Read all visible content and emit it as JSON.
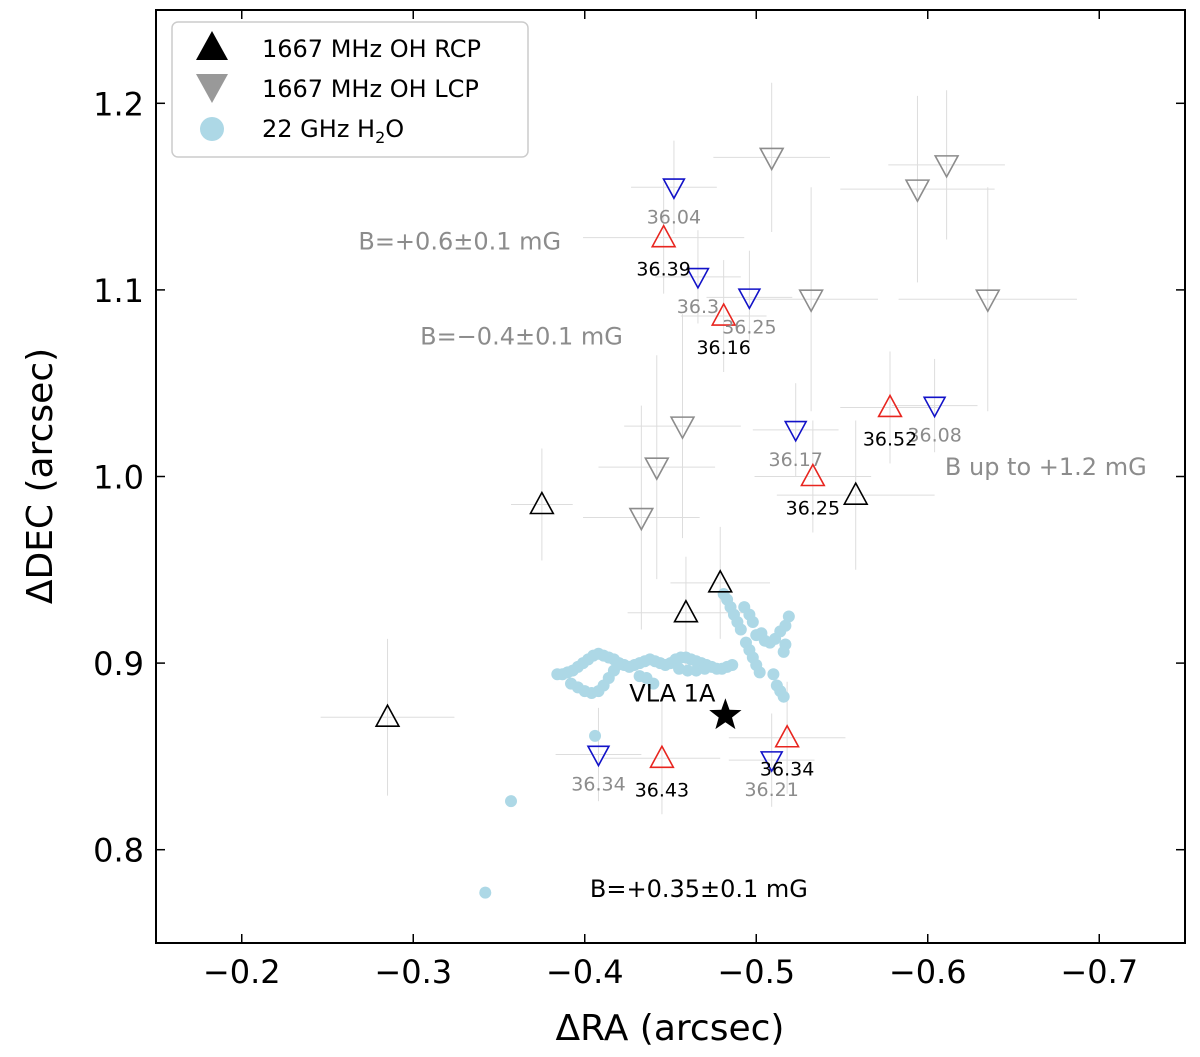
{
  "chart_data": {
    "type": "scatter",
    "xlabel": "ΔRA (arcsec)",
    "ylabel": "ΔDEC (arcsec)",
    "xlim": [
      -0.15,
      -0.75
    ],
    "ylim": [
      0.75,
      1.25
    ],
    "xticks": [
      -0.2,
      -0.3,
      -0.4,
      -0.5,
      -0.6,
      -0.7
    ],
    "xtick_labels": [
      "−0.2",
      "−0.3",
      "−0.4",
      "−0.5",
      "−0.6",
      "−0.7"
    ],
    "yticks": [
      0.8,
      0.9,
      1.0,
      1.1,
      1.2
    ],
    "ytick_labels": [
      "0.8",
      "0.9",
      "1.0",
      "1.1",
      "1.2"
    ],
    "legend": {
      "placement": "top-left",
      "entries": [
        {
          "marker": "up-triangle",
          "color": "#000000",
          "label": "1667 MHz OH RCP"
        },
        {
          "marker": "down-triangle",
          "color": "#999999",
          "label": "1667 MHz OH LCP"
        },
        {
          "marker": "circle",
          "color": "#add8e6",
          "label_main": "22 GHz H",
          "label_sub": "2",
          "label_tail": "O"
        }
      ]
    },
    "colors": {
      "black": "#000000",
      "red": "#e8251f",
      "blue": "#1212c8",
      "gray": "#8c8c8c",
      "water": "#add8e6",
      "errorbar": "#dddddd"
    },
    "rcp_black": [
      {
        "x": -0.285,
        "y": 0.871,
        "xerr": 0.039,
        "yerr": 0.042
      },
      {
        "x": -0.375,
        "y": 0.985,
        "xerr": 0.018,
        "yerr": 0.03
      },
      {
        "x": -0.459,
        "y": 0.927,
        "xerr": 0.034,
        "yerr": 0.03
      },
      {
        "x": -0.479,
        "y": 0.943,
        "xerr": 0.029,
        "yerr": 0.03
      },
      {
        "x": -0.558,
        "y": 0.99,
        "xerr": 0.046,
        "yerr": 0.04
      }
    ],
    "rcp_red": [
      {
        "x": -0.446,
        "y": 1.128,
        "xerr": 0.047,
        "yerr": 0.03,
        "label": "36.39"
      },
      {
        "x": -0.481,
        "y": 1.086,
        "xerr": 0.025,
        "yerr": 0.03,
        "label": "36.16"
      },
      {
        "x": -0.533,
        "y": 1.0,
        "xerr": 0.034,
        "yerr": 0.03,
        "label": "36.25"
      },
      {
        "x": -0.578,
        "y": 1.037,
        "xerr": 0.029,
        "yerr": 0.03,
        "label": "36.52"
      },
      {
        "x": -0.445,
        "y": 0.849,
        "xerr": 0.034,
        "yerr": 0.03,
        "label": "36.43"
      },
      {
        "x": -0.518,
        "y": 0.86,
        "xerr": 0.034,
        "yerr": 0.03,
        "label": "36.34"
      }
    ],
    "lcp_blue": [
      {
        "x": -0.452,
        "y": 1.155,
        "xerr": 0.025,
        "yerr": 0.025,
        "label": "36.04"
      },
      {
        "x": -0.466,
        "y": 1.107,
        "xerr": 0.025,
        "yerr": 0.025,
        "label": "36.3"
      },
      {
        "x": -0.496,
        "y": 1.096,
        "xerr": 0.025,
        "yerr": 0.025,
        "label": "36.25"
      },
      {
        "x": -0.523,
        "y": 1.025,
        "xerr": 0.025,
        "yerr": 0.025,
        "label": "36.17"
      },
      {
        "x": -0.604,
        "y": 1.038,
        "xerr": 0.025,
        "yerr": 0.025,
        "label": "36.08"
      },
      {
        "x": -0.408,
        "y": 0.851,
        "xerr": 0.025,
        "yerr": 0.025,
        "label": "36.34"
      },
      {
        "x": -0.509,
        "y": 0.848,
        "xerr": 0.025,
        "yerr": 0.025,
        "label": "36.21"
      }
    ],
    "lcp_gray": [
      {
        "x": -0.509,
        "y": 1.171,
        "xerr": 0.034,
        "yerr": 0.04
      },
      {
        "x": -0.594,
        "y": 1.154,
        "xerr": 0.045,
        "yerr": 0.05
      },
      {
        "x": -0.611,
        "y": 1.167,
        "xerr": 0.034,
        "yerr": 0.04
      },
      {
        "x": -0.532,
        "y": 1.095,
        "xerr": 0.039,
        "yerr": 0.06
      },
      {
        "x": -0.635,
        "y": 1.095,
        "xerr": 0.052,
        "yerr": 0.06
      },
      {
        "x": -0.457,
        "y": 1.027,
        "xerr": 0.034,
        "yerr": 0.06
      },
      {
        "x": -0.442,
        "y": 1.005,
        "xerr": 0.034,
        "yerr": 0.06
      },
      {
        "x": -0.433,
        "y": 0.978,
        "xerr": 0.034,
        "yerr": 0.06
      }
    ],
    "water_masers": [
      [
        -0.342,
        0.777
      ],
      [
        -0.357,
        0.826
      ],
      [
        -0.406,
        0.861
      ],
      [
        -0.384,
        0.894
      ],
      [
        -0.387,
        0.894
      ],
      [
        -0.39,
        0.895
      ],
      [
        -0.393,
        0.896
      ],
      [
        -0.396,
        0.898
      ],
      [
        -0.399,
        0.9
      ],
      [
        -0.402,
        0.902
      ],
      [
        -0.405,
        0.904
      ],
      [
        -0.408,
        0.905
      ],
      [
        -0.411,
        0.904
      ],
      [
        -0.414,
        0.903
      ],
      [
        -0.417,
        0.902
      ],
      [
        -0.42,
        0.9
      ],
      [
        -0.423,
        0.899
      ],
      [
        -0.426,
        0.898
      ],
      [
        -0.429,
        0.899
      ],
      [
        -0.432,
        0.9
      ],
      [
        -0.435,
        0.901
      ],
      [
        -0.438,
        0.902
      ],
      [
        -0.441,
        0.901
      ],
      [
        -0.444,
        0.9
      ],
      [
        -0.447,
        0.899
      ],
      [
        -0.45,
        0.9
      ],
      [
        -0.453,
        0.902
      ],
      [
        -0.456,
        0.903
      ],
      [
        -0.459,
        0.903
      ],
      [
        -0.462,
        0.902
      ],
      [
        -0.465,
        0.901
      ],
      [
        -0.468,
        0.9
      ],
      [
        -0.471,
        0.899
      ],
      [
        -0.474,
        0.898
      ],
      [
        -0.477,
        0.897
      ],
      [
        -0.48,
        0.897
      ],
      [
        -0.483,
        0.898
      ],
      [
        -0.486,
        0.899
      ],
      [
        -0.392,
        0.889
      ],
      [
        -0.396,
        0.887
      ],
      [
        -0.4,
        0.885
      ],
      [
        -0.404,
        0.884
      ],
      [
        -0.408,
        0.885
      ],
      [
        -0.411,
        0.888
      ],
      [
        -0.414,
        0.892
      ],
      [
        -0.417,
        0.896
      ],
      [
        -0.419,
        0.899
      ],
      [
        -0.455,
        0.897
      ],
      [
        -0.46,
        0.896
      ],
      [
        -0.465,
        0.896
      ],
      [
        -0.47,
        0.897
      ],
      [
        -0.432,
        0.893
      ],
      [
        -0.436,
        0.892
      ],
      [
        -0.44,
        0.889
      ],
      [
        -0.481,
        0.937
      ],
      [
        -0.483,
        0.934
      ],
      [
        -0.485,
        0.93
      ],
      [
        -0.487,
        0.926
      ],
      [
        -0.489,
        0.922
      ],
      [
        -0.491,
        0.918
      ],
      [
        -0.493,
        0.93
      ],
      [
        -0.496,
        0.926
      ],
      [
        -0.498,
        0.922
      ],
      [
        -0.494,
        0.911
      ],
      [
        -0.496,
        0.907
      ],
      [
        -0.498,
        0.903
      ],
      [
        -0.5,
        0.899
      ],
      [
        -0.502,
        0.895
      ],
      [
        -0.5,
        0.915
      ],
      [
        -0.503,
        0.916
      ],
      [
        -0.505,
        0.912
      ],
      [
        -0.508,
        0.911
      ],
      [
        -0.511,
        0.913
      ],
      [
        -0.514,
        0.917
      ],
      [
        -0.517,
        0.92
      ],
      [
        -0.519,
        0.925
      ],
      [
        -0.517,
        0.91
      ],
      [
        -0.516,
        0.906
      ],
      [
        -0.51,
        0.894
      ],
      [
        -0.512,
        0.888
      ],
      [
        -0.514,
        0.885
      ],
      [
        -0.516,
        0.882
      ]
    ],
    "source": {
      "x": -0.482,
      "y": 0.872,
      "label": "VLA 1A"
    },
    "annotations": [
      {
        "text": "B=+0.6±0.1 mG",
        "x": -0.268,
        "y": 1.126,
        "color": "#8c8c8c",
        "size": 24
      },
      {
        "text": "B=−0.4±0.1 mG",
        "x": -0.304,
        "y": 1.075,
        "color": "#8c8c8c",
        "size": 24
      },
      {
        "text": "B up to +1.2 mG",
        "x": -0.61,
        "y": 1.005,
        "color": "#8c8c8c",
        "size": 24
      },
      {
        "text": "B=+0.35±0.1 mG",
        "x": -0.403,
        "y": 0.779,
        "color": "#000000",
        "size": 24
      }
    ]
  }
}
